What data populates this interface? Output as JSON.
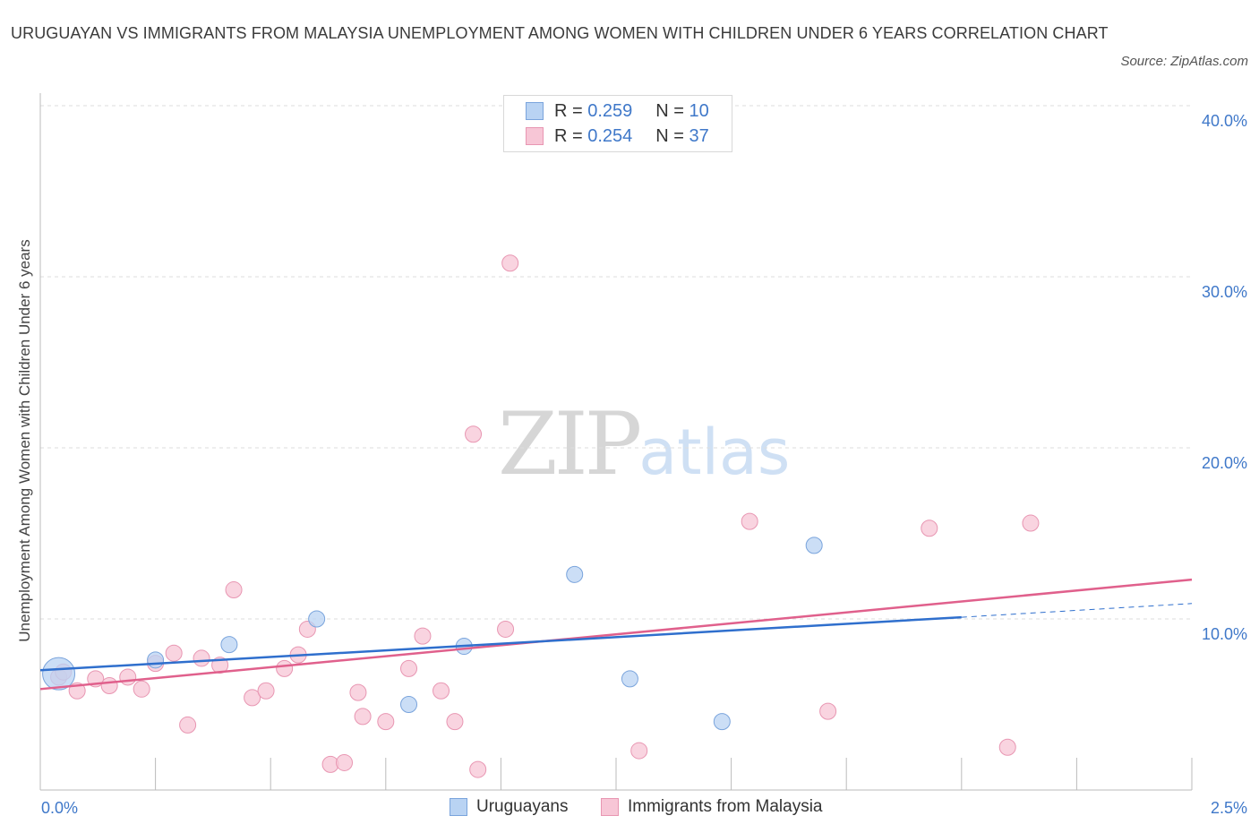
{
  "title": "URUGUAYAN VS IMMIGRANTS FROM MALAYSIA UNEMPLOYMENT AMONG WOMEN WITH CHILDREN UNDER 6 YEARS CORRELATION CHART",
  "source": "Source: ZipAtlas.com",
  "watermark": {
    "zip": "ZIP",
    "atlas": "atlas"
  },
  "legend": {
    "rows": [
      {
        "r_label": "R =",
        "r_value": "0.259",
        "n_label": "N =",
        "n_value": "10"
      },
      {
        "r_label": "R =",
        "r_value": "0.254",
        "n_label": "N =",
        "n_value": "37"
      }
    ]
  },
  "colors": {
    "blue_fill": "#b9d3f3",
    "blue_stroke": "#7aa4dc",
    "blue_line": "#2f6fcd",
    "pink_fill": "#f7c6d6",
    "pink_stroke": "#e896b2",
    "pink_line": "#e0608c",
    "tick_text": "#3f78c9",
    "grid": "#dedede"
  },
  "chart_data": {
    "type": "scatter",
    "title": "URUGUAYAN VS IMMIGRANTS FROM MALAYSIA UNEMPLOYMENT AMONG WOMEN WITH CHILDREN UNDER 6 YEARS CORRELATION CHART",
    "xlabel": "",
    "ylabel": "Unemployment Among Women with Children Under 6 years",
    "xlim": [
      0,
      2.5
    ],
    "ylim": [
      0,
      40
    ],
    "x_tick_labels": [
      "0.0%",
      "2.5%"
    ],
    "y_ticks": [
      10,
      20,
      30,
      40
    ],
    "y_tick_labels": [
      "10.0%",
      "20.0%",
      "30.0%",
      "40.0%"
    ],
    "grid": true,
    "legend_position": "top-center",
    "series": [
      {
        "name": "Uruguayans",
        "color": "#b9d3f3",
        "points": [
          {
            "x": 0.04,
            "y": 6.8,
            "size": "large"
          },
          {
            "x": 0.25,
            "y": 7.6
          },
          {
            "x": 0.41,
            "y": 8.5
          },
          {
            "x": 0.6,
            "y": 10.0
          },
          {
            "x": 0.8,
            "y": 5.0
          },
          {
            "x": 0.92,
            "y": 8.4
          },
          {
            "x": 1.16,
            "y": 12.6
          },
          {
            "x": 1.28,
            "y": 6.5
          },
          {
            "x": 1.48,
            "y": 4.0
          },
          {
            "x": 1.68,
            "y": 14.3
          }
        ],
        "trend": {
          "x0": 0.0,
          "y0": 7.0,
          "x1": 2.0,
          "y1": 10.1,
          "dashed_x1": 2.5,
          "dashed_y1": 10.9
        }
      },
      {
        "name": "Immigrants from Malaysia",
        "color": "#f7c6d6",
        "points": [
          {
            "x": 0.04,
            "y": 6.6
          },
          {
            "x": 0.08,
            "y": 5.8
          },
          {
            "x": 0.12,
            "y": 6.5
          },
          {
            "x": 0.15,
            "y": 6.1
          },
          {
            "x": 0.19,
            "y": 6.6
          },
          {
            "x": 0.22,
            "y": 5.9
          },
          {
            "x": 0.25,
            "y": 7.4
          },
          {
            "x": 0.29,
            "y": 8.0
          },
          {
            "x": 0.32,
            "y": 3.8
          },
          {
            "x": 0.35,
            "y": 7.7
          },
          {
            "x": 0.39,
            "y": 7.3
          },
          {
            "x": 0.42,
            "y": 11.7
          },
          {
            "x": 0.46,
            "y": 5.4
          },
          {
            "x": 0.49,
            "y": 5.8
          },
          {
            "x": 0.53,
            "y": 7.1
          },
          {
            "x": 0.56,
            "y": 7.9
          },
          {
            "x": 0.58,
            "y": 9.4
          },
          {
            "x": 0.63,
            "y": 1.5
          },
          {
            "x": 0.66,
            "y": 1.6
          },
          {
            "x": 0.69,
            "y": 5.7
          },
          {
            "x": 0.7,
            "y": 4.3
          },
          {
            "x": 0.75,
            "y": 4.0
          },
          {
            "x": 0.8,
            "y": 7.1
          },
          {
            "x": 0.83,
            "y": 9.0
          },
          {
            "x": 0.87,
            "y": 5.8
          },
          {
            "x": 0.9,
            "y": 4.0
          },
          {
            "x": 0.94,
            "y": 20.8
          },
          {
            "x": 0.95,
            "y": 1.2
          },
          {
            "x": 1.01,
            "y": 9.4
          },
          {
            "x": 1.02,
            "y": 30.8
          },
          {
            "x": 1.3,
            "y": 2.3
          },
          {
            "x": 1.54,
            "y": 15.7
          },
          {
            "x": 1.71,
            "y": 4.6
          },
          {
            "x": 1.93,
            "y": 15.3
          },
          {
            "x": 2.1,
            "y": 2.5
          },
          {
            "x": 2.15,
            "y": 15.6
          },
          {
            "x": 0.05,
            "y": 6.9
          }
        ],
        "trend": {
          "x0": 0.0,
          "y0": 5.9,
          "x1": 2.5,
          "y1": 12.3
        }
      }
    ]
  }
}
